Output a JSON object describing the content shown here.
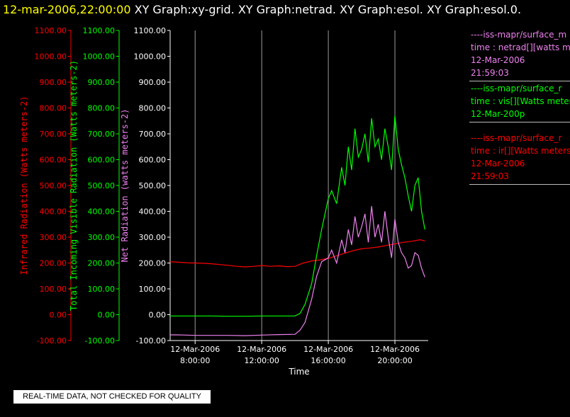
{
  "header": {
    "timestamp": "12-mar-2006,22:00:00",
    "titles": "XY Graph:xy-grid.  XY Graph:netrad.  XY Graph:esol.  XY Graph:esol.0."
  },
  "colors": {
    "infrared": "#ff0000",
    "visible": "#00ff00",
    "net": "#ee82ee",
    "axis_net": "#ffffff",
    "background": "#000000"
  },
  "legend": [
    {
      "color": "#ee82ee",
      "lines": [
        "----iss-mapr/surface_m",
        "time : netrad[][watts me",
        "12-Mar-2006",
        "21:59:03"
      ]
    },
    {
      "color": "#00ff00",
      "lines": [
        "----iss-mapr/surface_r",
        "time : vis[][Watts meter",
        "12-Mar-200p"
      ]
    },
    {
      "color": "#ff0000",
      "lines": [
        "----iss-mapr/surface_r",
        "time : ir[][Watts meters",
        "12-Mar-2006",
        "21:59:03"
      ]
    }
  ],
  "notice": "REAL-TIME DATA, NOT CHECKED FOR QUALITY",
  "chart_data": {
    "type": "line",
    "xlabel": "Time",
    "x_ticks": [
      {
        "date": "12-Mar-2006",
        "time": "8:00:00",
        "hour": 8
      },
      {
        "date": "12-Mar-2006",
        "time": "12:00:00",
        "hour": 12
      },
      {
        "date": "12-Mar-2006",
        "time": "16:00:00",
        "hour": 16
      },
      {
        "date": "12-Mar-2006",
        "time": "20:00:00",
        "hour": 20
      }
    ],
    "xlim": [
      6.5,
      22.0
    ],
    "grid": "vertical",
    "y_ticks": [
      "1100.00",
      "1000.00",
      "900.00",
      "800.00",
      "700.00",
      "600.00",
      "500.00",
      "400.00",
      "300.00",
      "200.00",
      "100.00",
      "0.00",
      "-100.00"
    ],
    "axes": [
      {
        "ylabel": "Infrared Radiation (Watts meters-2)",
        "color": "#ff0000",
        "ylim": [
          -100,
          1100
        ]
      },
      {
        "ylabel": "Total Incoming Visible Radiation (Watts meters-2)",
        "color": "#00ff00",
        "ylim": [
          -100,
          1100
        ]
      },
      {
        "ylabel": "Net Radiation (watts meters-2)",
        "color": "#ee82ee",
        "ylim": [
          -100,
          1100
        ]
      }
    ],
    "series": [
      {
        "color": "#ff0000",
        "x": [
          6.5,
          7.0,
          7.5,
          8.0,
          8.5,
          9.0,
          9.5,
          10.0,
          10.5,
          11.0,
          11.5,
          12.0,
          12.5,
          13.0,
          13.5,
          14.0,
          14.5,
          15.0,
          15.5,
          16.0,
          16.5,
          17.0,
          17.5,
          18.0,
          18.5,
          19.0,
          19.5,
          20.0,
          20.5,
          21.0,
          21.5,
          21.8
        ],
        "y": [
          205,
          203,
          201,
          200,
          199,
          197,
          194,
          191,
          187,
          185,
          187,
          190,
          187,
          189,
          186,
          187,
          200,
          208,
          212,
          218,
          228,
          238,
          248,
          255,
          258,
          262,
          268,
          274,
          280,
          284,
          290,
          285
        ]
      },
      {
        "color": "#00ff00",
        "x": [
          6.5,
          7.0,
          8.0,
          9.0,
          10.0,
          11.0,
          12.0,
          13.0,
          14.0,
          14.3,
          14.6,
          15.0,
          15.3,
          15.6,
          16.0,
          16.2,
          16.5,
          16.8,
          17.0,
          17.2,
          17.4,
          17.6,
          17.8,
          18.0,
          18.2,
          18.4,
          18.6,
          18.8,
          19.0,
          19.2,
          19.4,
          19.6,
          19.8,
          20.0,
          20.2,
          20.4,
          20.6,
          20.8,
          21.0,
          21.2,
          21.4,
          21.6,
          21.8
        ],
        "y": [
          -5,
          -5,
          -5,
          -5,
          -6,
          -6,
          -5,
          -5,
          -5,
          5,
          40,
          120,
          230,
          330,
          450,
          480,
          430,
          570,
          500,
          650,
          560,
          720,
          610,
          640,
          700,
          590,
          760,
          650,
          680,
          600,
          720,
          650,
          560,
          770,
          640,
          580,
          530,
          460,
          400,
          500,
          530,
          400,
          330
        ]
      },
      {
        "color": "#ee82ee",
        "x": [
          6.5,
          7.0,
          8.0,
          9.0,
          10.0,
          11.0,
          12.0,
          13.0,
          14.0,
          14.3,
          14.6,
          15.0,
          15.3,
          15.6,
          16.0,
          16.2,
          16.5,
          16.8,
          17.0,
          17.2,
          17.4,
          17.6,
          17.8,
          18.0,
          18.2,
          18.4,
          18.6,
          18.8,
          19.0,
          19.2,
          19.4,
          19.6,
          19.8,
          20.0,
          20.2,
          20.4,
          20.6,
          20.8,
          21.0,
          21.2,
          21.4,
          21.6,
          21.8
        ],
        "y": [
          -78,
          -78,
          -80,
          -80,
          -80,
          -81,
          -79,
          -77,
          -76,
          -60,
          -30,
          60,
          150,
          205,
          220,
          250,
          200,
          290,
          240,
          330,
          270,
          380,
          300,
          340,
          390,
          280,
          420,
          300,
          350,
          280,
          400,
          300,
          220,
          370,
          280,
          240,
          220,
          180,
          190,
          240,
          230,
          180,
          145
        ]
      }
    ]
  }
}
